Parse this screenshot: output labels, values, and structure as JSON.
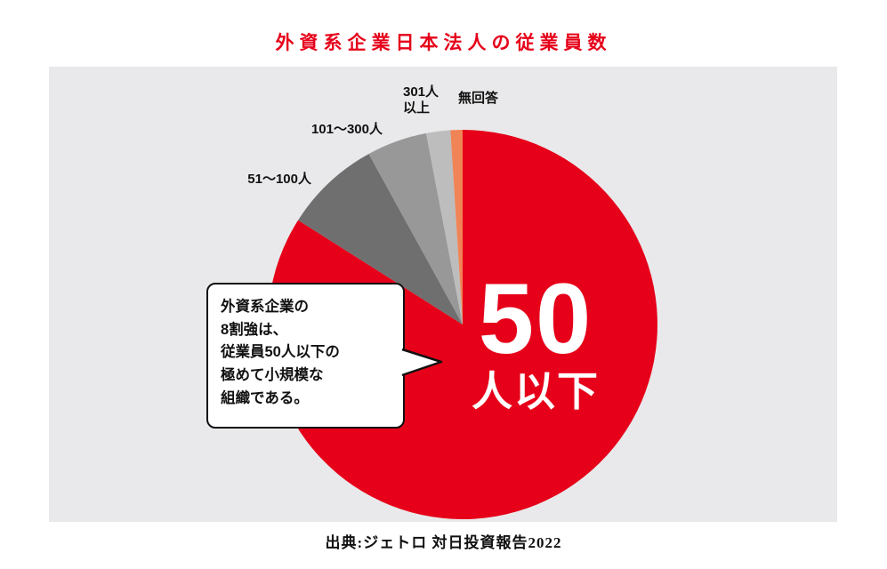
{
  "title": "外資系企業日本法人の従業員数",
  "source": "出典:ジェトロ 対日投資報告2022",
  "callout": {
    "lines": {
      "0": "外資系企業の",
      "1": "8割強は、",
      "2": "従業員50人以下の",
      "3": "極めて小規模な",
      "4": "組織である。"
    }
  },
  "center_label": {
    "big": "50",
    "small": "人以下"
  },
  "colors": {
    "accent_red": "#e60019",
    "panel_background": "#e9e9eb",
    "callout_border": "#111111"
  },
  "chart_data": {
    "type": "pie",
    "title": "外資系企業日本法人の従業員数",
    "start_angle_deg": 0,
    "direction": "clockwise",
    "legend_position": "labels-adjacent",
    "slices": [
      {
        "label": "50人以下",
        "value": 84,
        "color": "#e60019"
      },
      {
        "label": "51～100人",
        "value": 8,
        "color": "#6f6f6f"
      },
      {
        "label": "101～300人",
        "value": 5,
        "color": "#989898"
      },
      {
        "label": "301人以上",
        "value": 2,
        "color": "#bdbdbd"
      },
      {
        "label": "無回答",
        "value": 1,
        "color": "#f08457"
      }
    ]
  }
}
